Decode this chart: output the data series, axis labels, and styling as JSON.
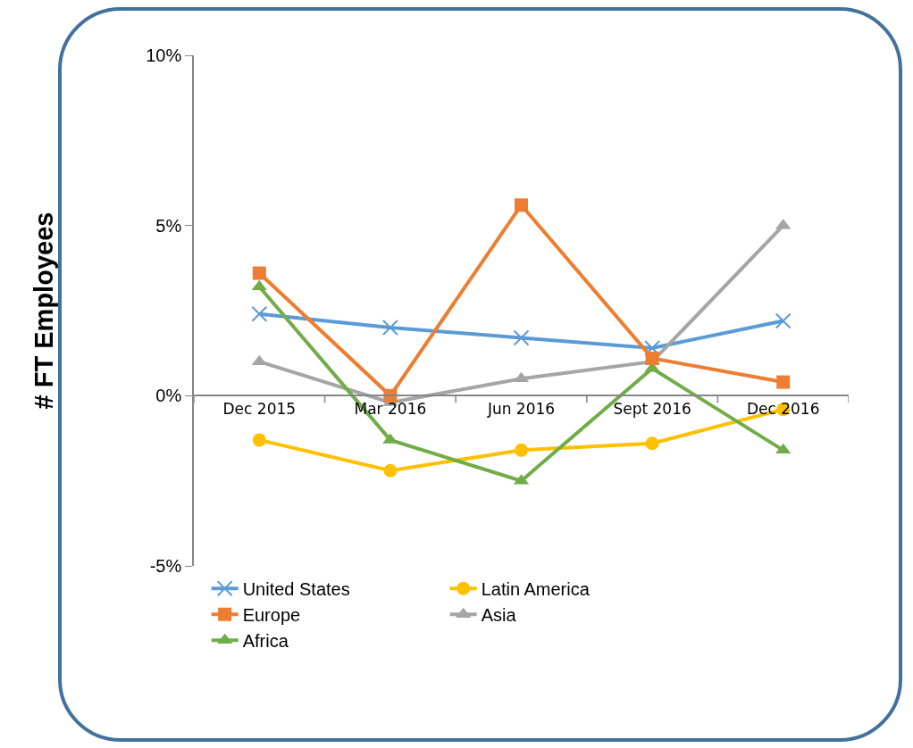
{
  "chart_data": {
    "type": "line",
    "ylabel": "# FT Employees",
    "categories": [
      "Dec 2015",
      "Mar 2016",
      "Jun 2016",
      "Sept 2016",
      "Dec 2016"
    ],
    "ylim": [
      -5,
      10
    ],
    "yticks": [
      {
        "value": -5,
        "label": "-5%"
      },
      {
        "value": 0,
        "label": "0%"
      },
      {
        "value": 5,
        "label": "5%"
      },
      {
        "value": 10,
        "label": "10%"
      }
    ],
    "grid": false,
    "legend": "bottom",
    "line_style": "solid",
    "series": [
      {
        "name": "United States",
        "color": "#5b9bd5",
        "marker": "cross",
        "values": [
          2.4,
          2.0,
          1.7,
          1.4,
          2.2
        ]
      },
      {
        "name": "Latin America",
        "color": "#ffc000",
        "marker": "circle",
        "values": [
          -1.3,
          -2.2,
          -1.6,
          -1.4,
          -0.4
        ]
      },
      {
        "name": "Europe",
        "color": "#ed7d31",
        "marker": "square",
        "values": [
          3.6,
          0.0,
          5.6,
          1.1,
          0.4
        ]
      },
      {
        "name": "Asia",
        "color": "#a5a5a5",
        "marker": "triangle",
        "values": [
          1.0,
          -0.2,
          0.5,
          1.0,
          5.0
        ]
      },
      {
        "name": "Africa",
        "color": "#70ad47",
        "marker": "triangle",
        "values": [
          3.2,
          -1.3,
          -2.5,
          0.8,
          -1.6
        ]
      }
    ]
  }
}
